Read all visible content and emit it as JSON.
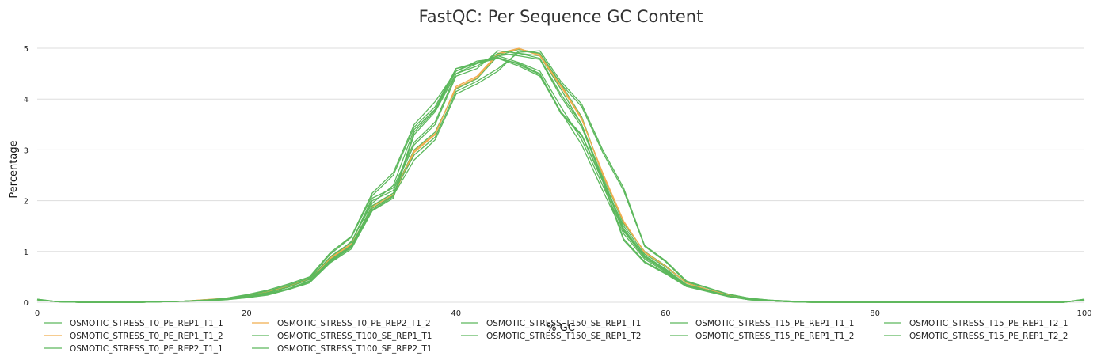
{
  "chart_data": {
    "type": "line",
    "title": "FastQC: Per Sequence GC Content",
    "xlabel": "% GC",
    "ylabel": "Percentage",
    "xlim": [
      0,
      100
    ],
    "ylim": [
      0,
      5
    ],
    "xticks": [
      0,
      20,
      40,
      60,
      80,
      100
    ],
    "yticks": [
      0,
      1,
      2,
      3,
      4,
      5
    ],
    "grid": "horizontal",
    "legend_position": "bottom",
    "colors": {
      "pass": "#5cb85c",
      "warn": "#f0ad4e"
    },
    "x": [
      0,
      2,
      4,
      6,
      8,
      10,
      12,
      14,
      16,
      18,
      20,
      22,
      24,
      26,
      28,
      30,
      32,
      34,
      36,
      38,
      40,
      42,
      44,
      46,
      48,
      50,
      52,
      54,
      56,
      58,
      60,
      62,
      64,
      66,
      68,
      70,
      72,
      74,
      76,
      78,
      80,
      82,
      84,
      86,
      88,
      90,
      92,
      94,
      96,
      98,
      100
    ],
    "series": [
      {
        "name": "OSMOTIC_STRESS_T0_PE_REP1_T1_1",
        "color": "#5cb85c",
        "values": [
          0.05,
          0.01,
          0,
          0,
          0,
          0,
          0.01,
          0.02,
          0.04,
          0.07,
          0.12,
          0.2,
          0.32,
          0.48,
          0.85,
          1.2,
          1.95,
          2.3,
          3.4,
          3.8,
          4.6,
          4.72,
          4.85,
          4.9,
          4.85,
          4.2,
          3.5,
          2.4,
          1.5,
          0.95,
          0.7,
          0.38,
          0.25,
          0.15,
          0.07,
          0.04,
          0.02,
          0.01,
          0,
          0,
          0,
          0,
          0,
          0,
          0,
          0,
          0,
          0,
          0,
          0,
          0.05
        ]
      },
      {
        "name": "OSMOTIC_STRESS_T0_PE_REP1_T1_2",
        "color": "#f0ad4e",
        "values": [
          0.05,
          0.01,
          0,
          0,
          0,
          0,
          0.01,
          0.02,
          0.05,
          0.08,
          0.14,
          0.22,
          0.3,
          0.45,
          0.88,
          1.15,
          1.85,
          2.1,
          2.95,
          3.3,
          4.25,
          4.45,
          4.9,
          5.0,
          4.85,
          4.25,
          3.6,
          2.55,
          1.6,
          0.98,
          0.72,
          0.38,
          0.25,
          0.14,
          0.06,
          0.03,
          0.01,
          0,
          0,
          0,
          0,
          0,
          0,
          0,
          0,
          0,
          0,
          0,
          0,
          0,
          0.05
        ]
      },
      {
        "name": "OSMOTIC_STRESS_T0_PE_REP2_T1_1",
        "color": "#5cb85c",
        "values": [
          0.05,
          0.01,
          0,
          0,
          0,
          0,
          0.01,
          0.02,
          0.04,
          0.06,
          0.11,
          0.18,
          0.3,
          0.46,
          0.8,
          1.1,
          1.9,
          2.15,
          3.0,
          3.35,
          4.2,
          4.4,
          4.85,
          4.98,
          4.9,
          4.3,
          3.65,
          2.5,
          1.55,
          1.0,
          0.72,
          0.38,
          0.25,
          0.14,
          0.06,
          0.03,
          0.01,
          0,
          0,
          0,
          0,
          0,
          0,
          0,
          0,
          0,
          0,
          0,
          0,
          0,
          0.05
        ]
      },
      {
        "name": "OSMOTIC_STRESS_T0_PE_REP2_T1_2",
        "color": "#f0ad4e",
        "values": [
          0.05,
          0.01,
          0,
          0,
          0,
          0,
          0.01,
          0.02,
          0.05,
          0.07,
          0.13,
          0.2,
          0.31,
          0.46,
          0.86,
          1.14,
          1.88,
          2.12,
          2.98,
          3.32,
          4.22,
          4.42,
          4.88,
          4.99,
          4.88,
          4.28,
          3.62,
          2.52,
          1.58,
          0.99,
          0.71,
          0.38,
          0.25,
          0.14,
          0.06,
          0.03,
          0.01,
          0,
          0,
          0,
          0,
          0,
          0,
          0,
          0,
          0,
          0,
          0,
          0,
          0,
          0.05
        ]
      },
      {
        "name": "OSMOTIC_STRESS_T100_SE_REP1_T1",
        "color": "#5cb85c",
        "values": [
          0.06,
          0.01,
          0,
          0,
          0,
          0,
          0.01,
          0.02,
          0.04,
          0.08,
          0.15,
          0.24,
          0.36,
          0.5,
          0.98,
          1.3,
          2.15,
          2.55,
          3.5,
          3.95,
          4.55,
          4.75,
          4.8,
          4.65,
          4.45,
          3.75,
          3.1,
          2.2,
          1.35,
          0.85,
          0.6,
          0.32,
          0.22,
          0.12,
          0.05,
          0.03,
          0.01,
          0,
          0,
          0,
          0,
          0,
          0,
          0,
          0,
          0,
          0,
          0,
          0,
          0,
          0.06
        ]
      },
      {
        "name": "OSMOTIC_STRESS_T100_SE_REP2_T1",
        "color": "#5cb85c",
        "values": [
          0.06,
          0.01,
          0,
          0,
          0,
          0,
          0.01,
          0.02,
          0.04,
          0.07,
          0.14,
          0.22,
          0.34,
          0.48,
          0.95,
          1.28,
          2.1,
          2.5,
          3.45,
          3.85,
          4.6,
          4.7,
          4.85,
          4.72,
          4.55,
          3.85,
          3.2,
          2.3,
          1.4,
          0.88,
          0.62,
          0.33,
          0.23,
          0.12,
          0.05,
          0.03,
          0.01,
          0,
          0,
          0,
          0,
          0,
          0,
          0,
          0,
          0,
          0,
          0,
          0,
          0,
          0.06
        ]
      },
      {
        "name": "OSMOTIC_STRESS_T150_SE_REP1_T1",
        "color": "#5cb85c",
        "values": [
          0.05,
          0.01,
          0,
          0,
          0,
          0,
          0.01,
          0.02,
          0.04,
          0.06,
          0.1,
          0.16,
          0.26,
          0.4,
          0.82,
          1.1,
          1.85,
          2.1,
          2.8,
          3.2,
          4.1,
          4.3,
          4.55,
          4.95,
          4.9,
          4.3,
          3.85,
          2.95,
          2.2,
          1.1,
          0.8,
          0.4,
          0.28,
          0.16,
          0.08,
          0.04,
          0.02,
          0.01,
          0,
          0,
          0,
          0,
          0,
          0,
          0,
          0,
          0,
          0,
          0,
          0,
          0.05
        ]
      },
      {
        "name": "OSMOTIC_STRESS_T150_SE_REP1_T2",
        "color": "#5cb85c",
        "values": [
          0.05,
          0.01,
          0,
          0,
          0,
          0,
          0.01,
          0.02,
          0.04,
          0.06,
          0.11,
          0.17,
          0.27,
          0.42,
          0.84,
          1.12,
          1.9,
          2.15,
          2.9,
          3.25,
          4.15,
          4.35,
          4.6,
          4.92,
          4.95,
          4.35,
          3.9,
          3.0,
          2.25,
          1.12,
          0.82,
          0.42,
          0.29,
          0.16,
          0.08,
          0.04,
          0.02,
          0.01,
          0,
          0,
          0,
          0,
          0,
          0,
          0,
          0,
          0,
          0,
          0,
          0,
          0.05
        ]
      },
      {
        "name": "OSMOTIC_STRESS_T15_PE_REP1_T1_1",
        "color": "#5cb85c",
        "values": [
          0.05,
          0.01,
          0,
          0,
          0,
          0,
          0.01,
          0.02,
          0.03,
          0.05,
          0.09,
          0.14,
          0.25,
          0.38,
          0.78,
          1.05,
          1.8,
          2.05,
          3.3,
          3.75,
          4.5,
          4.7,
          4.8,
          4.7,
          4.5,
          3.75,
          3.3,
          2.4,
          1.25,
          0.8,
          0.58,
          0.32,
          0.22,
          0.12,
          0.05,
          0.03,
          0.01,
          0,
          0,
          0,
          0,
          0,
          0,
          0,
          0,
          0,
          0,
          0,
          0,
          0,
          0.05
        ]
      },
      {
        "name": "OSMOTIC_STRESS_T15_PE_REP1_T1_2",
        "color": "#5cb85c",
        "values": [
          0.05,
          0.01,
          0,
          0,
          0,
          0,
          0.01,
          0.02,
          0.03,
          0.05,
          0.09,
          0.15,
          0.26,
          0.4,
          0.8,
          1.08,
          1.82,
          2.08,
          3.35,
          3.78,
          4.55,
          4.72,
          4.82,
          4.68,
          4.48,
          3.72,
          3.28,
          2.38,
          1.22,
          0.78,
          0.56,
          0.31,
          0.21,
          0.11,
          0.05,
          0.03,
          0.01,
          0,
          0,
          0,
          0,
          0,
          0,
          0,
          0,
          0,
          0,
          0,
          0,
          0,
          0.05
        ]
      },
      {
        "name": "OSMOTIC_STRESS_T15_PE_REP1_T2_1",
        "color": "#5cb85c",
        "values": [
          0.05,
          0.01,
          0,
          0,
          0,
          0,
          0.01,
          0.02,
          0.04,
          0.06,
          0.12,
          0.19,
          0.3,
          0.45,
          0.9,
          1.18,
          2.0,
          2.2,
          3.1,
          3.5,
          4.45,
          4.6,
          4.95,
          4.9,
          4.8,
          4.1,
          3.5,
          2.45,
          1.45,
          0.92,
          0.66,
          0.35,
          0.24,
          0.13,
          0.06,
          0.03,
          0.01,
          0,
          0,
          0,
          0,
          0,
          0,
          0,
          0,
          0,
          0,
          0,
          0,
          0,
          0.05
        ]
      },
      {
        "name": "OSMOTIC_STRESS_T15_PE_REP1_T2_2",
        "color": "#5cb85c",
        "values": [
          0.05,
          0.01,
          0,
          0,
          0,
          0,
          0.01,
          0.02,
          0.04,
          0.06,
          0.12,
          0.19,
          0.3,
          0.45,
          0.9,
          1.18,
          2.05,
          2.25,
          3.15,
          3.55,
          4.5,
          4.65,
          4.9,
          4.85,
          4.78,
          4.05,
          3.45,
          2.4,
          1.42,
          0.9,
          0.64,
          0.34,
          0.23,
          0.13,
          0.06,
          0.03,
          0.01,
          0,
          0,
          0,
          0,
          0,
          0,
          0,
          0,
          0,
          0,
          0,
          0,
          0,
          0.05
        ]
      }
    ],
    "legend_columns": [
      [
        "OSMOTIC_STRESS_T0_PE_REP1_T1_1",
        "OSMOTIC_STRESS_T0_PE_REP1_T1_2",
        "OSMOTIC_STRESS_T0_PE_REP2_T1_1"
      ],
      [
        "OSMOTIC_STRESS_T0_PE_REP2_T1_2",
        "OSMOTIC_STRESS_T100_SE_REP1_T1",
        "OSMOTIC_STRESS_T100_SE_REP2_T1"
      ],
      [
        "OSMOTIC_STRESS_T150_SE_REP1_T1",
        "OSMOTIC_STRESS_T150_SE_REP1_T2"
      ],
      [
        "OSMOTIC_STRESS_T15_PE_REP1_T1_1",
        "OSMOTIC_STRESS_T15_PE_REP1_T1_2"
      ],
      [
        "OSMOTIC_STRESS_T15_PE_REP1_T2_1",
        "OSMOTIC_STRESS_T15_PE_REP1_T2_2"
      ]
    ]
  }
}
